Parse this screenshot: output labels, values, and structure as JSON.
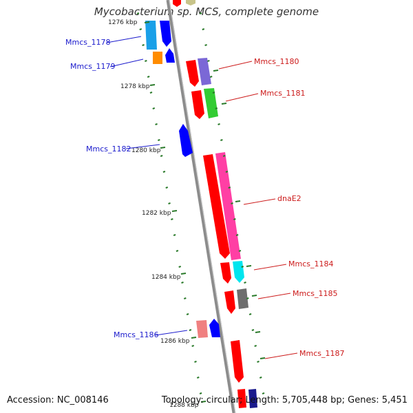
{
  "title": "Mycobacterium sp. MCS, complete genome",
  "accession_text": "Accession: NC_008146",
  "summary_text": "Topology: circular; Length: 5,705,448 bp; Genes: 5,451",
  "colors": {
    "backbone": "#8c8c8c",
    "tick": "#2a7a2a",
    "left_label": "#1a1acc",
    "right_label": "#cc1a1a"
  },
  "scale_labels": [
    "1276 kbp",
    "1278 kbp",
    "1280 kbp",
    "1282 kbp",
    "1284 kbp",
    "1286 kbp",
    "1288 kbp"
  ],
  "genes": [
    {
      "name": "Mmcs_1178",
      "label_side": "left"
    },
    {
      "name": "Mmcs_1179",
      "label_side": "left"
    },
    {
      "name": "Mmcs_1180",
      "label_side": "right"
    },
    {
      "name": "Mmcs_1181",
      "label_side": "right"
    },
    {
      "name": "Mmcs_1182",
      "label_side": "left"
    },
    {
      "name": "dnaE2",
      "label_side": "right"
    },
    {
      "name": "Mmcs_1184",
      "label_side": "right"
    },
    {
      "name": "Mmcs_1185",
      "label_side": "right"
    },
    {
      "name": "Mmcs_1186",
      "label_side": "left"
    },
    {
      "name": "Mmcs_1187",
      "label_side": "right"
    }
  ],
  "feature_colors": [
    "#ff0000",
    "#1aa0e8",
    "#0000ff",
    "#ff8c00",
    "#7b68d6",
    "#33cc33",
    "#ff3fa4",
    "#00e5ee",
    "#6e6e6e",
    "#f08080"
  ]
}
